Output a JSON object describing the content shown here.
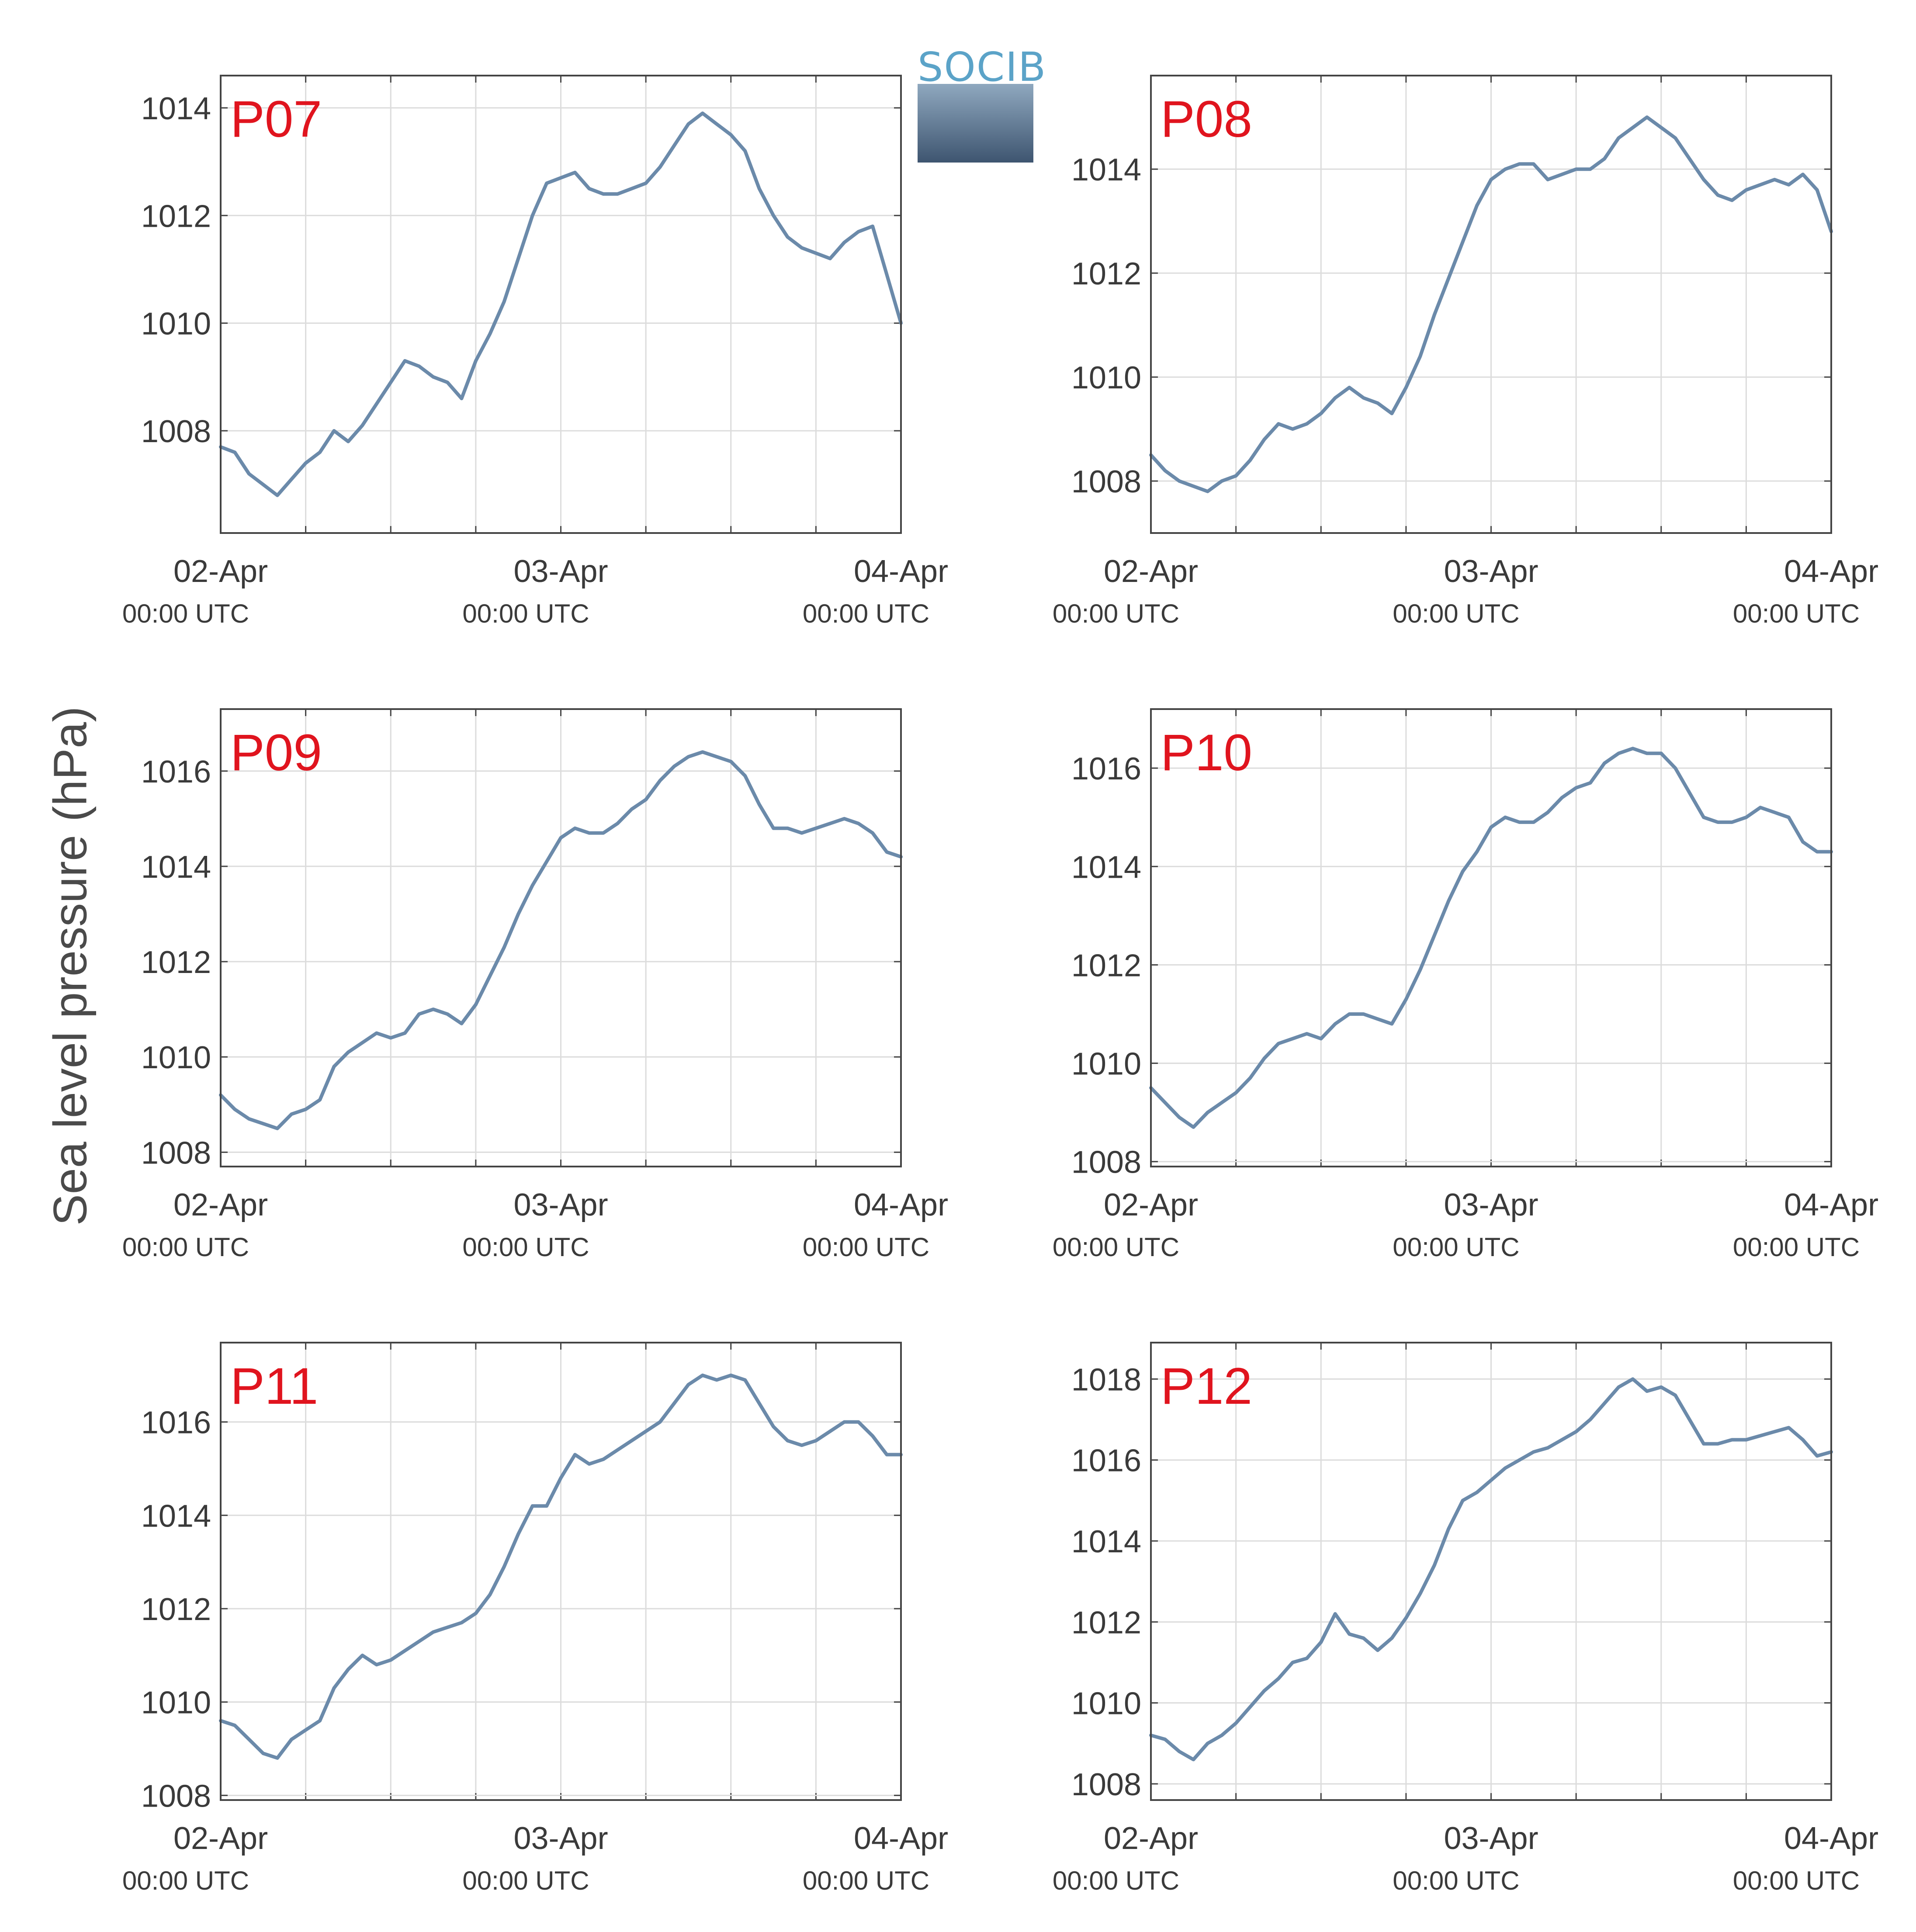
{
  "figure": {
    "ylabel": "Sea level pressure (hPa)",
    "logo_text": "SOCIB",
    "line_color": "#6b8aaa",
    "label_color": "#e0141e",
    "xticks": [
      {
        "date": "02-Apr",
        "time": "00:00 UTC"
      },
      {
        "date": "03-Apr",
        "time": "00:00 UTC"
      },
      {
        "date": "04-Apr",
        "time": "00:00 UTC"
      }
    ]
  },
  "chart_data": [
    {
      "type": "line",
      "title": "P07",
      "grid": true,
      "xlim": [
        0,
        48
      ],
      "ylim": [
        1006.1,
        1014.6
      ],
      "yticks": [
        1008,
        1010,
        1012,
        1014
      ],
      "x": [
        0,
        1,
        2,
        3,
        4,
        5,
        6,
        7,
        8,
        9,
        10,
        11,
        12,
        13,
        14,
        15,
        16,
        17,
        18,
        19,
        20,
        21,
        22,
        23,
        24,
        25,
        26,
        27,
        28,
        29,
        30,
        31,
        32,
        33,
        34,
        35,
        36,
        37,
        38,
        39,
        40,
        41,
        42,
        43,
        44,
        45,
        46,
        47,
        48
      ],
      "values": [
        1007.7,
        1007.6,
        1007.2,
        1007.0,
        1006.8,
        1007.1,
        1007.4,
        1007.6,
        1008.0,
        1007.8,
        1008.1,
        1008.5,
        1008.9,
        1009.3,
        1009.2,
        1009.0,
        1008.9,
        1008.6,
        1009.3,
        1009.8,
        1010.4,
        1011.2,
        1012.0,
        1012.6,
        1012.7,
        1012.8,
        1012.5,
        1012.4,
        1012.4,
        1012.5,
        1012.6,
        1012.9,
        1013.3,
        1013.7,
        1013.9,
        1013.7,
        1013.5,
        1013.2,
        1012.5,
        1012.0,
        1011.6,
        1011.4,
        1011.3,
        1011.2,
        1011.5,
        1011.7,
        1011.8,
        1010.9,
        1010.0
      ]
    },
    {
      "type": "line",
      "title": "P08",
      "grid": true,
      "xlim": [
        0,
        48
      ],
      "ylim": [
        1007.0,
        1015.8
      ],
      "yticks": [
        1008,
        1010,
        1012,
        1014
      ],
      "x": [
        0,
        1,
        2,
        3,
        4,
        5,
        6,
        7,
        8,
        9,
        10,
        11,
        12,
        13,
        14,
        15,
        16,
        17,
        18,
        19,
        20,
        21,
        22,
        23,
        24,
        25,
        26,
        27,
        28,
        29,
        30,
        31,
        32,
        33,
        34,
        35,
        36,
        37,
        38,
        39,
        40,
        41,
        42,
        43,
        44,
        45,
        46,
        47,
        48
      ],
      "values": [
        1008.5,
        1008.2,
        1008.0,
        1007.9,
        1007.8,
        1008.0,
        1008.1,
        1008.4,
        1008.8,
        1009.1,
        1009.0,
        1009.1,
        1009.3,
        1009.6,
        1009.8,
        1009.6,
        1009.5,
        1009.3,
        1009.8,
        1010.4,
        1011.2,
        1011.9,
        1012.6,
        1013.3,
        1013.8,
        1014.0,
        1014.1,
        1014.1,
        1013.8,
        1013.9,
        1014.0,
        1014.0,
        1014.2,
        1014.6,
        1014.8,
        1015.0,
        1014.8,
        1014.6,
        1014.2,
        1013.8,
        1013.5,
        1013.4,
        1013.6,
        1013.7,
        1013.8,
        1013.7,
        1013.9,
        1013.6,
        1012.8
      ]
    },
    {
      "type": "line",
      "title": "P09",
      "grid": true,
      "xlim": [
        0,
        48
      ],
      "ylim": [
        1007.7,
        1017.3
      ],
      "yticks": [
        1008,
        1010,
        1012,
        1014,
        1016
      ],
      "x": [
        0,
        1,
        2,
        3,
        4,
        5,
        6,
        7,
        8,
        9,
        10,
        11,
        12,
        13,
        14,
        15,
        16,
        17,
        18,
        19,
        20,
        21,
        22,
        23,
        24,
        25,
        26,
        27,
        28,
        29,
        30,
        31,
        32,
        33,
        34,
        35,
        36,
        37,
        38,
        39,
        40,
        41,
        42,
        43,
        44,
        45,
        46,
        47,
        48
      ],
      "values": [
        1009.2,
        1008.9,
        1008.7,
        1008.6,
        1008.5,
        1008.8,
        1008.9,
        1009.1,
        1009.8,
        1010.1,
        1010.3,
        1010.5,
        1010.4,
        1010.5,
        1010.9,
        1011.0,
        1010.9,
        1010.7,
        1011.1,
        1011.7,
        1012.3,
        1013.0,
        1013.6,
        1014.1,
        1014.6,
        1014.8,
        1014.7,
        1014.7,
        1014.9,
        1015.2,
        1015.4,
        1015.8,
        1016.1,
        1016.3,
        1016.4,
        1016.3,
        1016.2,
        1015.9,
        1015.3,
        1014.8,
        1014.8,
        1014.7,
        1014.8,
        1014.9,
        1015.0,
        1014.9,
        1014.7,
        1014.3,
        1014.2
      ]
    },
    {
      "type": "line",
      "title": "P10",
      "grid": true,
      "xlim": [
        0,
        48
      ],
      "ylim": [
        1007.9,
        1017.2
      ],
      "yticks": [
        1008,
        1010,
        1012,
        1014,
        1016
      ],
      "x": [
        0,
        1,
        2,
        3,
        4,
        5,
        6,
        7,
        8,
        9,
        10,
        11,
        12,
        13,
        14,
        15,
        16,
        17,
        18,
        19,
        20,
        21,
        22,
        23,
        24,
        25,
        26,
        27,
        28,
        29,
        30,
        31,
        32,
        33,
        34,
        35,
        36,
        37,
        38,
        39,
        40,
        41,
        42,
        43,
        44,
        45,
        46,
        47,
        48
      ],
      "values": [
        1009.5,
        1009.2,
        1008.9,
        1008.7,
        1009.0,
        1009.2,
        1009.4,
        1009.7,
        1010.1,
        1010.4,
        1010.5,
        1010.6,
        1010.5,
        1010.8,
        1011.0,
        1011.0,
        1010.9,
        1010.8,
        1011.3,
        1011.9,
        1012.6,
        1013.3,
        1013.9,
        1014.3,
        1014.8,
        1015.0,
        1014.9,
        1014.9,
        1015.1,
        1015.4,
        1015.6,
        1015.7,
        1016.1,
        1016.3,
        1016.4,
        1016.3,
        1016.3,
        1016.0,
        1015.5,
        1015.0,
        1014.9,
        1014.9,
        1015.0,
        1015.2,
        1015.1,
        1015.0,
        1014.5,
        1014.3,
        1014.3
      ]
    },
    {
      "type": "line",
      "title": "P11",
      "grid": true,
      "xlim": [
        0,
        48
      ],
      "ylim": [
        1007.9,
        1017.7
      ],
      "yticks": [
        1008,
        1010,
        1012,
        1014,
        1016
      ],
      "x": [
        0,
        1,
        2,
        3,
        4,
        5,
        6,
        7,
        8,
        9,
        10,
        11,
        12,
        13,
        14,
        15,
        16,
        17,
        18,
        19,
        20,
        21,
        22,
        23,
        24,
        25,
        26,
        27,
        28,
        29,
        30,
        31,
        32,
        33,
        34,
        35,
        36,
        37,
        38,
        39,
        40,
        41,
        42,
        43,
        44,
        45,
        46,
        47,
        48
      ],
      "values": [
        1009.6,
        1009.5,
        1009.2,
        1008.9,
        1008.8,
        1009.2,
        1009.4,
        1009.6,
        1010.3,
        1010.7,
        1011.0,
        1010.8,
        1010.9,
        1011.1,
        1011.3,
        1011.5,
        1011.6,
        1011.7,
        1011.9,
        1012.3,
        1012.9,
        1013.6,
        1014.2,
        1014.2,
        1014.8,
        1015.3,
        1015.1,
        1015.2,
        1015.4,
        1015.6,
        1015.8,
        1016.0,
        1016.4,
        1016.8,
        1017.0,
        1016.9,
        1017.0,
        1016.9,
        1016.4,
        1015.9,
        1015.6,
        1015.5,
        1015.6,
        1015.8,
        1016.0,
        1016.0,
        1015.7,
        1015.3,
        1015.3
      ]
    },
    {
      "type": "line",
      "title": "P12",
      "grid": true,
      "xlim": [
        0,
        48
      ],
      "ylim": [
        1007.6,
        1018.9
      ],
      "yticks": [
        1008,
        1010,
        1012,
        1014,
        1016,
        1018
      ],
      "x": [
        0,
        1,
        2,
        3,
        4,
        5,
        6,
        7,
        8,
        9,
        10,
        11,
        12,
        13,
        14,
        15,
        16,
        17,
        18,
        19,
        20,
        21,
        22,
        23,
        24,
        25,
        26,
        27,
        28,
        29,
        30,
        31,
        32,
        33,
        34,
        35,
        36,
        37,
        38,
        39,
        40,
        41,
        42,
        43,
        44,
        45,
        46,
        47,
        48
      ],
      "values": [
        1009.2,
        1009.1,
        1008.8,
        1008.6,
        1009.0,
        1009.2,
        1009.5,
        1009.9,
        1010.3,
        1010.6,
        1011.0,
        1011.1,
        1011.5,
        1012.2,
        1011.7,
        1011.6,
        1011.3,
        1011.6,
        1012.1,
        1012.7,
        1013.4,
        1014.3,
        1015.0,
        1015.2,
        1015.5,
        1015.8,
        1016.0,
        1016.2,
        1016.3,
        1016.5,
        1016.7,
        1017.0,
        1017.4,
        1017.8,
        1018.0,
        1017.7,
        1017.8,
        1017.6,
        1017.0,
        1016.4,
        1016.4,
        1016.5,
        1016.5,
        1016.6,
        1016.7,
        1016.8,
        1016.5,
        1016.1,
        1016.2
      ]
    }
  ]
}
